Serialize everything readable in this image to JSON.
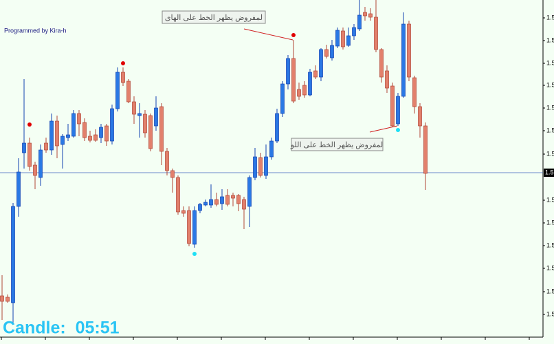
{
  "chart_data": {
    "type": "candlestick",
    "credit": "Programmed by Kira-h",
    "timer": "Candle:  05:51",
    "annotations": [
      {
        "text": "لمفروض يظهر الخط على الهاى"
      },
      {
        "text": "لمفروض يظهر الخط على اللو"
      }
    ],
    "up_color": "#2a78e4",
    "down_color": "#e2806c",
    "ylim": [
      1.511,
      1.56
    ],
    "yticks": [
      {
        "value": 1.5574,
        "label": "1.5"
      },
      {
        "value": 1.5541,
        "label": "1.5"
      },
      {
        "value": 1.5508,
        "label": "1.5"
      },
      {
        "value": 1.5476,
        "label": "1.5"
      },
      {
        "value": 1.5443,
        "label": "1.5"
      },
      {
        "value": 1.541,
        "label": "1.5"
      },
      {
        "value": 1.5376,
        "label": "1.5"
      },
      {
        "value": 1.5309,
        "label": "1.5"
      },
      {
        "value": 1.5276,
        "label": "1.5"
      },
      {
        "value": 1.5243,
        "label": "1.5"
      },
      {
        "value": 1.521,
        "label": "1.5"
      },
      {
        "value": 1.5176,
        "label": "1.5"
      },
      {
        "value": 1.5143,
        "label": "1.5"
      }
    ],
    "current_price": {
      "value": 1.5349,
      "label": "1.5"
    },
    "grid": false,
    "candles": [
      [
        1.517,
        1.52,
        1.5135,
        1.5162
      ],
      [
        1.5168,
        1.5172,
        1.516,
        1.5162
      ],
      [
        1.516,
        1.5305,
        1.513,
        1.53
      ],
      [
        1.53,
        1.537,
        1.5285,
        1.535
      ],
      [
        1.5378,
        1.5485,
        1.5355,
        1.5392
      ],
      [
        1.5392,
        1.54,
        1.5352,
        1.5358
      ],
      [
        1.536,
        1.5365,
        1.5325,
        1.5345
      ],
      [
        1.5342,
        1.539,
        1.533,
        1.5382
      ],
      [
        1.5392,
        1.54,
        1.5378,
        1.5382
      ],
      [
        1.5382,
        1.5435,
        1.5375,
        1.5424
      ],
      [
        1.5424,
        1.5432,
        1.537,
        1.5388
      ],
      [
        1.539,
        1.5405,
        1.5355,
        1.5402
      ],
      [
        1.54,
        1.542,
        1.5395,
        1.5404
      ],
      [
        1.5402,
        1.544,
        1.54,
        1.5435
      ],
      [
        1.5435,
        1.544,
        1.5402,
        1.542
      ],
      [
        1.5422,
        1.5428,
        1.5395,
        1.54
      ],
      [
        1.5402,
        1.541,
        1.5393,
        1.5396
      ],
      [
        1.5404,
        1.5412,
        1.5394,
        1.5396
      ],
      [
        1.54,
        1.542,
        1.5392,
        1.5415
      ],
      [
        1.5417,
        1.542,
        1.5388,
        1.5395
      ],
      [
        1.5395,
        1.5448,
        1.539,
        1.5442
      ],
      [
        1.5442,
        1.5502,
        1.5438,
        1.5495
      ],
      [
        1.5495,
        1.5502,
        1.5475,
        1.548
      ],
      [
        1.5482,
        1.5485,
        1.545,
        1.5452
      ],
      [
        1.5452,
        1.546,
        1.542,
        1.5434
      ],
      [
        1.5432,
        1.545,
        1.54,
        1.5435
      ],
      [
        1.5434,
        1.544,
        1.54,
        1.5407
      ],
      [
        1.5432,
        1.5435,
        1.538,
        1.5384
      ],
      [
        1.5417,
        1.546,
        1.541,
        1.5443
      ],
      [
        1.5445,
        1.545,
        1.536,
        1.538
      ],
      [
        1.538,
        1.5385,
        1.5345,
        1.5352
      ],
      [
        1.5352,
        1.5355,
        1.532,
        1.5342
      ],
      [
        1.5342,
        1.5345,
        1.5288,
        1.5292
      ],
      [
        1.5294,
        1.53,
        1.5285,
        1.529
      ],
      [
        1.5294,
        1.53,
        1.5242,
        1.5246
      ],
      [
        1.5245,
        1.53,
        1.524,
        1.5294
      ],
      [
        1.5294,
        1.5305,
        1.529,
        1.5303
      ],
      [
        1.5302,
        1.531,
        1.53,
        1.5306
      ],
      [
        1.5302,
        1.5332,
        1.5298,
        1.531
      ],
      [
        1.531,
        1.532,
        1.53,
        1.5303
      ],
      [
        1.5304,
        1.5325,
        1.5295,
        1.5314
      ],
      [
        1.5316,
        1.5325,
        1.53,
        1.5303
      ],
      [
        1.5316,
        1.532,
        1.53,
        1.5312
      ],
      [
        1.5316,
        1.5318,
        1.5293,
        1.5304
      ],
      [
        1.531,
        1.5314,
        1.5267,
        1.5296
      ],
      [
        1.53,
        1.5345,
        1.527,
        1.5342
      ],
      [
        1.5342,
        1.5385,
        1.5338,
        1.5372
      ],
      [
        1.5371,
        1.5378,
        1.5342,
        1.5345
      ],
      [
        1.5345,
        1.539,
        1.534,
        1.5372
      ],
      [
        1.5372,
        1.54,
        1.5368,
        1.5395
      ],
      [
        1.5395,
        1.5442,
        1.5392,
        1.5435
      ],
      [
        1.5435,
        1.5482,
        1.543,
        1.5478
      ],
      [
        1.5478,
        1.552,
        1.547,
        1.5515
      ],
      [
        1.5515,
        1.5542,
        1.545,
        1.5453
      ],
      [
        1.547,
        1.548,
        1.5455,
        1.546
      ],
      [
        1.5476,
        1.5482,
        1.5458,
        1.5462
      ],
      [
        1.5462,
        1.55,
        1.546,
        1.5495
      ],
      [
        1.5497,
        1.5505,
        1.5485,
        1.5488
      ],
      [
        1.5488,
        1.553,
        1.5482,
        1.5528
      ],
      [
        1.5528,
        1.5535,
        1.5515,
        1.5518
      ],
      [
        1.5516,
        1.5542,
        1.5512,
        1.5534
      ],
      [
        1.5533,
        1.556,
        1.553,
        1.5556
      ],
      [
        1.5555,
        1.556,
        1.5528,
        1.5532
      ],
      [
        1.5534,
        1.556,
        1.5532,
        1.5548
      ],
      [
        1.5548,
        1.5565,
        1.5542,
        1.556
      ],
      [
        1.5558,
        1.56,
        1.5555,
        1.5578
      ],
      [
        1.5582,
        1.559,
        1.557,
        1.5577
      ],
      [
        1.558,
        1.5588,
        1.557,
        1.5575
      ],
      [
        1.5575,
        1.56,
        1.5524,
        1.5528
      ],
      [
        1.5528,
        1.553,
        1.548,
        1.5488
      ],
      [
        1.5497,
        1.5505,
        1.5465,
        1.5472
      ],
      [
        1.5475,
        1.548,
        1.5415,
        1.5417
      ],
      [
        1.542,
        1.5465,
        1.5417,
        1.546
      ],
      [
        1.546,
        1.5582,
        1.5458,
        1.5565
      ],
      [
        1.5565,
        1.557,
        1.5482,
        1.5488
      ],
      [
        1.5487,
        1.549,
        1.5435,
        1.5445
      ],
      [
        1.5445,
        1.545,
        1.54,
        1.5417
      ],
      [
        1.5417,
        1.5422,
        1.5324,
        1.5348
      ]
    ],
    "markers": [
      {
        "candle": 5,
        "value": 1.5419,
        "color": "#e00000"
      },
      {
        "candle": 22,
        "value": 1.5508,
        "color": "#e00000"
      },
      {
        "candle": 53,
        "value": 1.5549,
        "color": "#e00000"
      },
      {
        "candle": 35,
        "value": 1.5231,
        "color": "#1ee0f5"
      },
      {
        "candle": 72,
        "value": 1.5411,
        "color": "#1ee0f5"
      }
    ]
  }
}
